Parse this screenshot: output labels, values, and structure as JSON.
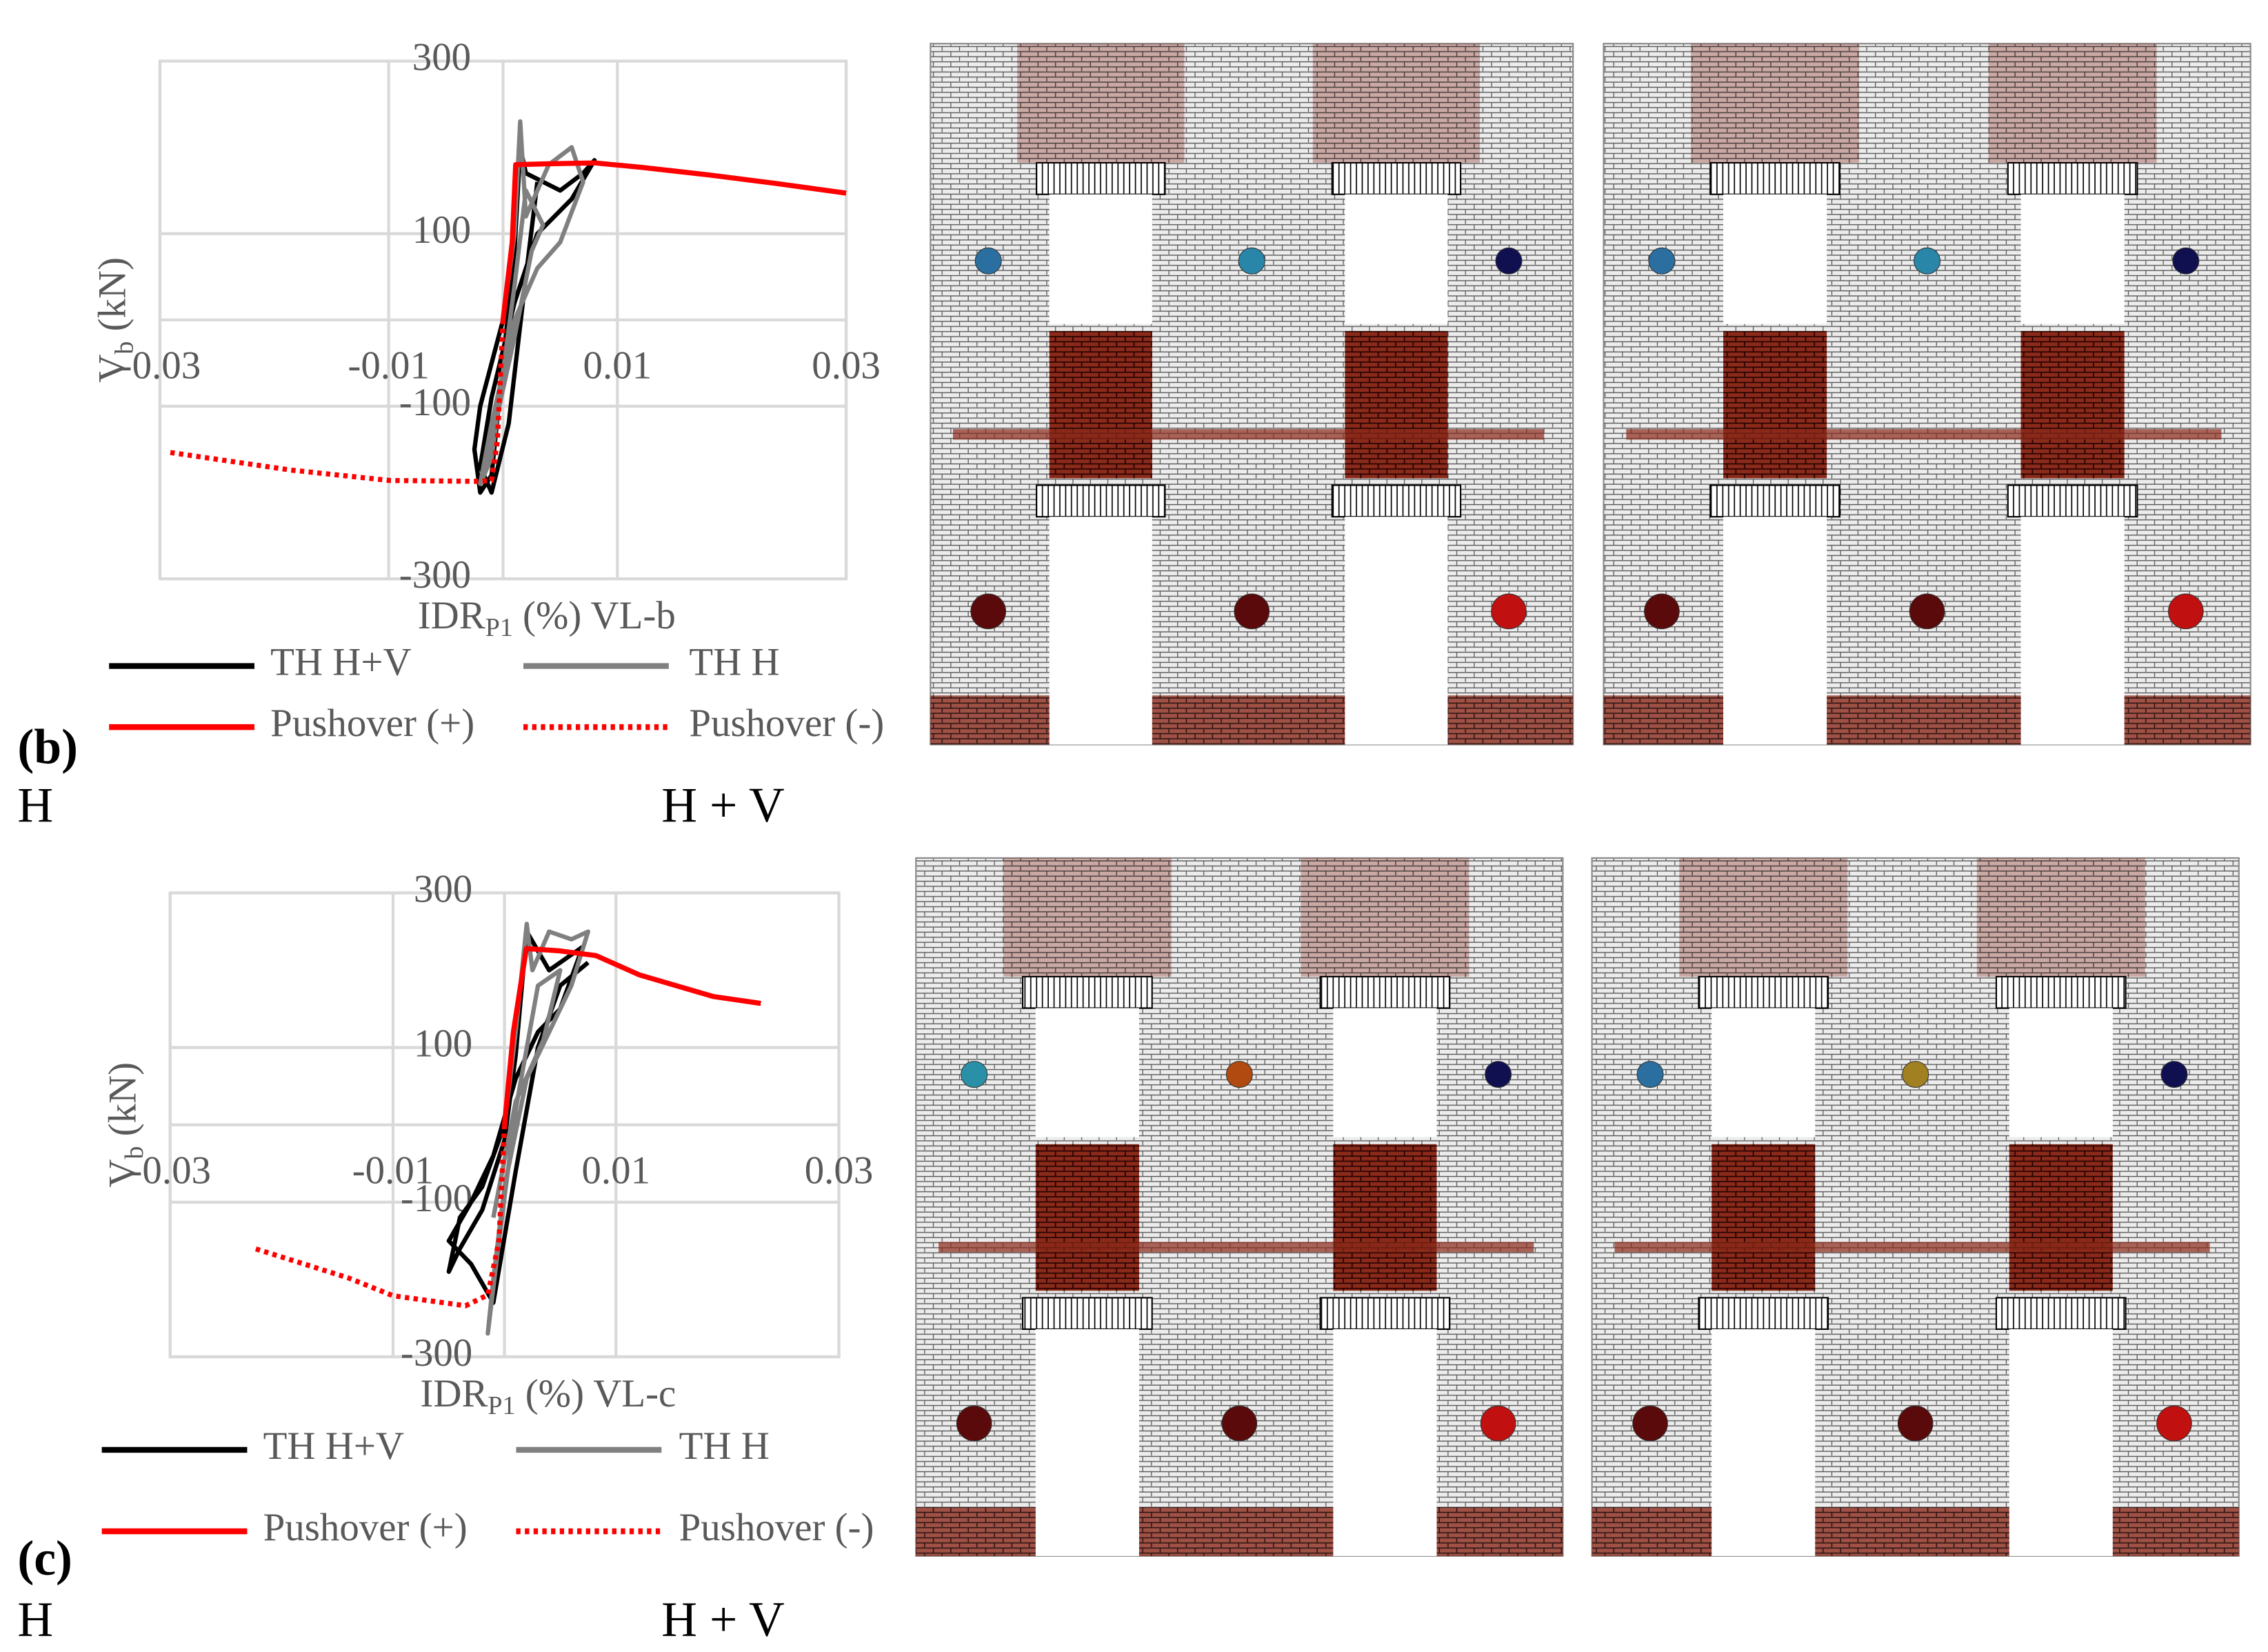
{
  "chart_data": [
    {
      "type": "line",
      "ylabel": [
        "V",
        "b",
        " (kN)"
      ],
      "xlabel": [
        "IDR",
        "P1",
        " (%) VL-b"
      ],
      "xlim": [
        -0.03,
        0.03
      ],
      "ylim": [
        -300,
        300
      ],
      "xticks": [
        -0.03,
        -0.01,
        0.01,
        0.03
      ],
      "yticks": [
        -300,
        -100,
        100,
        300
      ],
      "grid": true,
      "series": [
        {
          "name": "TH H+V",
          "color": "#000000",
          "dash": "solid",
          "x": [
            0,
            -0.002,
            -0.0025,
            -0.002,
            -0.001,
            0,
            0.001,
            0.0015,
            0.002,
            0.005,
            0.007,
            0.008,
            0.006,
            0.003,
            0.001,
            -0.001,
            -0.002,
            -0.001,
            0.0005,
            0.002,
            0.003
          ],
          "values": [
            0,
            -100,
            -150,
            -200,
            -180,
            -50,
            80,
            200,
            170,
            150,
            170,
            185,
            140,
            100,
            20,
            -90,
            -170,
            -200,
            -120,
            50,
            160
          ]
        },
        {
          "name": "TH H",
          "color": "#808080",
          "dash": "solid",
          "x": [
            0,
            0.001,
            0.0015,
            0.002,
            0.004,
            0.006,
            0.007,
            0.005,
            0.003,
            0.001,
            -0.001,
            -0.002,
            -0.001,
            0,
            0.001,
            0.002,
            0.0035,
            0.0025,
            0.001,
            -0.0015
          ],
          "values": [
            0,
            100,
            230,
            120,
            180,
            200,
            160,
            90,
            60,
            0,
            -120,
            -190,
            -160,
            -60,
            40,
            150,
            110,
            80,
            -20,
            -170
          ]
        },
        {
          "name": "Pushover (+)",
          "color": "#ff0000",
          "dash": "solid",
          "x": [
            0,
            0.0008,
            0.0011,
            0.004,
            0.008,
            0.012,
            0.018,
            0.024,
            0.03
          ],
          "values": [
            0,
            90,
            180,
            181,
            182,
            177,
            168,
            158,
            147
          ]
        },
        {
          "name": "Pushover (-)",
          "color": "#ff0000",
          "dash": "dotted",
          "x": [
            0,
            -0.0005,
            -0.001,
            -0.002,
            -0.0099,
            -0.0186,
            -0.0294
          ],
          "values": [
            0,
            -140,
            -186,
            -187,
            -186,
            -174,
            -153
          ]
        }
      ]
    },
    {
      "type": "line",
      "ylabel": [
        "V",
        "b",
        " (kN)"
      ],
      "xlabel": [
        "IDR",
        "P1",
        " (%) VL-c"
      ],
      "xlim": [
        -0.03,
        0.03
      ],
      "ylim": [
        -300,
        300
      ],
      "xticks": [
        -0.03,
        -0.01,
        0.01,
        0.03
      ],
      "yticks": [
        -300,
        -100,
        100,
        300
      ],
      "grid": true,
      "series": [
        {
          "name": "TH H+V",
          "color": "#000000",
          "dash": "solid",
          "x": [
            0,
            -0.002,
            -0.004,
            -0.005,
            -0.004,
            -0.002,
            0,
            0.001,
            0.002,
            0.004,
            0.006,
            0.007,
            0.005,
            0.003,
            0.001,
            -0.001,
            -0.003,
            -0.005,
            -0.003,
            -0.001,
            0.001,
            0.003,
            0.005,
            0.0075
          ],
          "values": [
            0,
            -80,
            -120,
            -190,
            -160,
            -110,
            -20,
            90,
            250,
            200,
            220,
            230,
            150,
            120,
            60,
            -40,
            -100,
            -150,
            -180,
            -230,
            -60,
            100,
            180,
            210
          ]
        },
        {
          "name": "TH H",
          "color": "#808080",
          "dash": "solid",
          "x": [
            0,
            0.001,
            0.002,
            0.0025,
            0.004,
            0.006,
            0.0075,
            0.006,
            0.004,
            0.002,
            0,
            -0.001,
            -0.0015,
            -0.0005,
            0.001,
            0.003,
            0.005,
            0.0035,
            0.001,
            -0.001
          ],
          "values": [
            0,
            120,
            260,
            200,
            250,
            240,
            250,
            180,
            120,
            60,
            -80,
            -200,
            -270,
            -150,
            20,
            180,
            200,
            110,
            30,
            -120
          ]
        },
        {
          "name": "Pushover (+)",
          "color": "#ff0000",
          "dash": "solid",
          "x": [
            0,
            0.0008,
            0.00196,
            0.005,
            0.0082,
            0.0121,
            0.0187,
            0.023
          ],
          "values": [
            0,
            120,
            228,
            225,
            219,
            194,
            166,
            157
          ]
        },
        {
          "name": "Pushover (-)",
          "color": "#ff0000",
          "dash": "dotted",
          "x": [
            0,
            -0.0005,
            -0.0015,
            -0.0035,
            -0.01,
            -0.014,
            -0.0224
          ],
          "values": [
            0,
            -150,
            -220,
            -234,
            -221,
            -198,
            -160
          ]
        }
      ]
    }
  ],
  "panels": [
    {
      "label": "(b)",
      "captions": [
        "H",
        "H + V"
      ]
    },
    {
      "label": "(c)",
      "captions": [
        "H",
        "H + V"
      ]
    }
  ]
}
